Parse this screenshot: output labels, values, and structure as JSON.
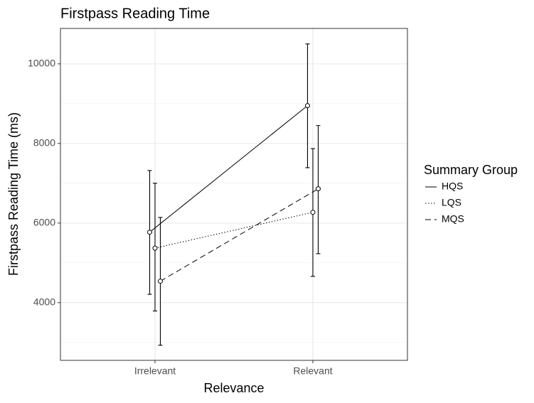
{
  "chart_data": {
    "type": "line",
    "title": "Firstpass Reading Time",
    "x_label": "Relevance",
    "y_label": "Firstpass Reading Time (ms)",
    "categories": [
      "Irrelevant",
      "Relevant"
    ],
    "series": [
      {
        "name": "HQS",
        "color": "#000000",
        "dash": "solid",
        "values": [
          5770,
          8950
        ],
        "lower": [
          4210,
          7390
        ],
        "upper": [
          7320,
          10500
        ]
      },
      {
        "name": "LQS",
        "color": "#000000",
        "dash": "dotted",
        "values": [
          5370,
          6270
        ],
        "lower": [
          3790,
          4660
        ],
        "upper": [
          7000,
          7870
        ]
      },
      {
        "name": "MQS",
        "color": "#000000",
        "dash": "dashed",
        "values": [
          4540,
          6860
        ],
        "lower": [
          2930,
          5230
        ],
        "upper": [
          6140,
          8450
        ]
      }
    ],
    "legend_title": "Summary Group",
    "legend": "right",
    "ylim": [
      2550,
      10890
    ],
    "yticks": [
      4000,
      6000,
      8000,
      10000
    ],
    "y_minor_ticks": [
      3000,
      5000,
      7000,
      9000
    ],
    "grid": true
  }
}
